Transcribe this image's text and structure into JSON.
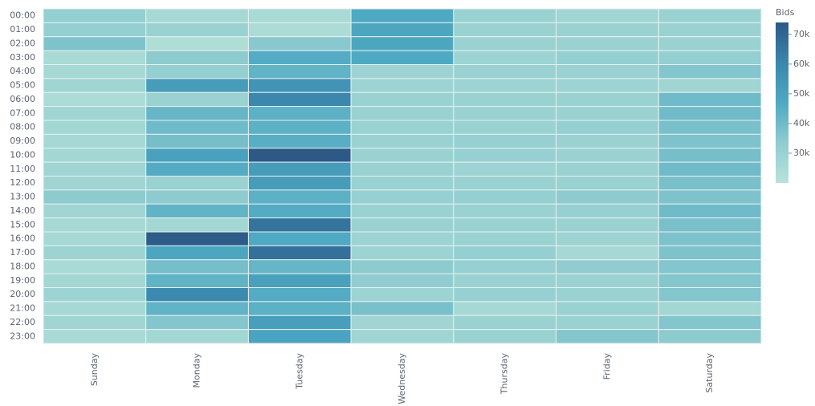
{
  "chart_data": {
    "type": "heatmap",
    "x_categories": [
      "Sunday",
      "Monday",
      "Tuesday",
      "Wednesday",
      "Thursday",
      "Friday",
      "Saturday"
    ],
    "y_categories": [
      "00:00",
      "01:00",
      "02:00",
      "03:00",
      "04:00",
      "05:00",
      "06:00",
      "07:00",
      "08:00",
      "09:00",
      "10:00",
      "11:00",
      "12:00",
      "13:00",
      "14:00",
      "15:00",
      "16:00",
      "17:00",
      "18:00",
      "19:00",
      "20:00",
      "21:00",
      "22:00",
      "23:00"
    ],
    "values": [
      [
        32000,
        26000,
        25000,
        47000,
        30000,
        28000,
        30000
      ],
      [
        32000,
        30000,
        24000,
        48000,
        30000,
        30000,
        30000
      ],
      [
        37000,
        23000,
        35000,
        48000,
        30000,
        30000,
        30000
      ],
      [
        25000,
        34000,
        46000,
        47000,
        29000,
        32000,
        32000
      ],
      [
        26000,
        32000,
        43000,
        29000,
        30000,
        30000,
        36000
      ],
      [
        28000,
        52000,
        55000,
        29000,
        29000,
        29000,
        28000
      ],
      [
        24000,
        30000,
        60000,
        30000,
        30000,
        30000,
        40000
      ],
      [
        28000,
        42000,
        44000,
        30000,
        30000,
        30000,
        40000
      ],
      [
        27000,
        40000,
        44000,
        30000,
        30000,
        32000,
        38000
      ],
      [
        26000,
        39000,
        45000,
        30000,
        31000,
        30000,
        37000
      ],
      [
        27000,
        50000,
        74000,
        30000,
        31000,
        30000,
        39000
      ],
      [
        28000,
        46000,
        52000,
        30000,
        29000,
        30000,
        40000
      ],
      [
        28000,
        30000,
        52000,
        30000,
        30000,
        30000,
        38000
      ],
      [
        34000,
        34000,
        44000,
        31000,
        32000,
        34000,
        37000
      ],
      [
        28000,
        43000,
        46000,
        30000,
        30000,
        31000,
        40000
      ],
      [
        26000,
        27000,
        66000,
        30000,
        30000,
        30000,
        38000
      ],
      [
        26000,
        73000,
        47000,
        29000,
        30000,
        29000,
        37000
      ],
      [
        29000,
        48000,
        67000,
        29000,
        32000,
        26000,
        37000
      ],
      [
        25000,
        39000,
        42000,
        34000,
        31000,
        33000,
        36000
      ],
      [
        27000,
        43000,
        50000,
        33000,
        30000,
        30000,
        36000
      ],
      [
        29000,
        59000,
        46000,
        29000,
        31000,
        30000,
        36000
      ],
      [
        26000,
        43000,
        44000,
        38000,
        26000,
        30000,
        27000
      ],
      [
        28000,
        36000,
        51000,
        28000,
        30000,
        30000,
        36000
      ],
      [
        25000,
        27000,
        49000,
        28000,
        30000,
        36000,
        34000
      ]
    ],
    "colorbar_title": "Bids",
    "zlim": [
      20000,
      74000
    ],
    "zticks": [
      {
        "value": 30000,
        "label": "30k"
      },
      {
        "value": 40000,
        "label": "40k"
      },
      {
        "value": 50000,
        "label": "50k"
      },
      {
        "value": 60000,
        "label": "60k"
      },
      {
        "value": 70000,
        "label": "70k"
      }
    ],
    "colors": [
      "#b8e3d9",
      "#8fccd0",
      "#4ea9c2",
      "#3a86ad",
      "#2c5986"
    ]
  }
}
